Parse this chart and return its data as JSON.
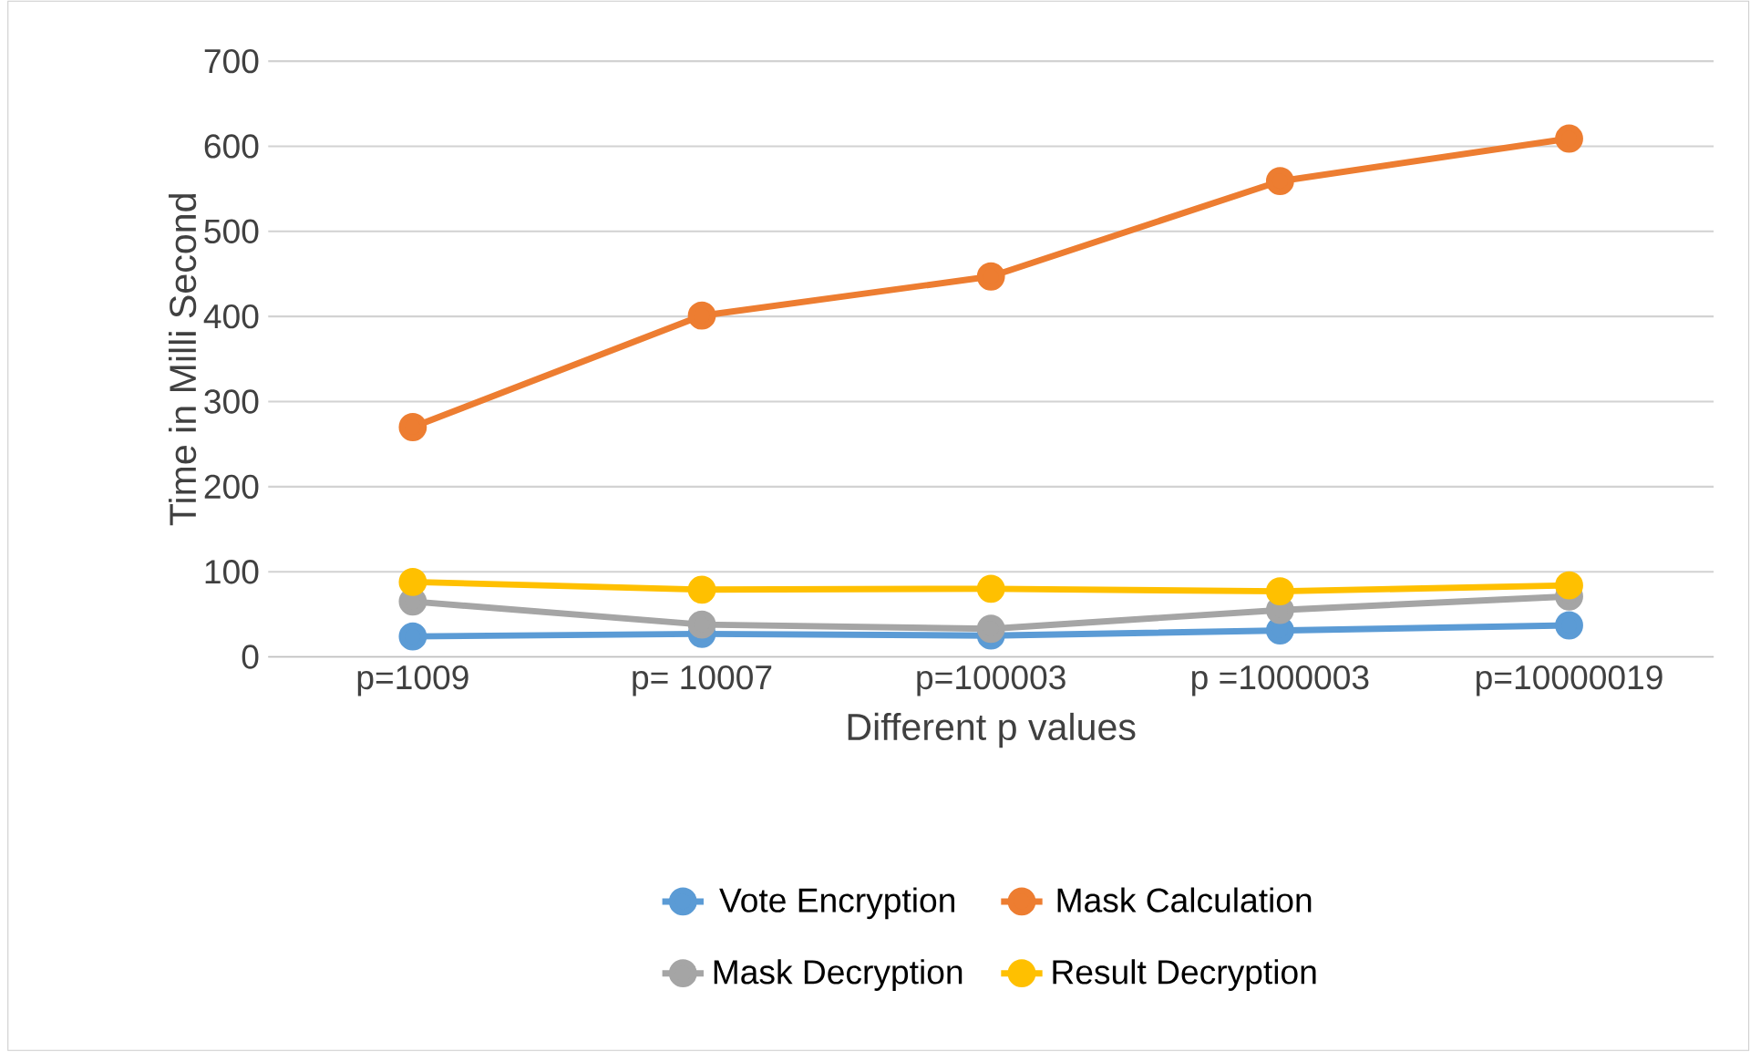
{
  "chart_data": {
    "type": "line",
    "xlabel": "Different p values",
    "ylabel": "Time in Milli Second",
    "categories": [
      "p=1009",
      "p= 10007",
      "p=100003",
      "p =1000003",
      "p=10000019"
    ],
    "series": [
      {
        "name": "Vote Encryption",
        "color": "#5b9bd5",
        "values": [
          24,
          27,
          25,
          31,
          37
        ]
      },
      {
        "name": "Mask Calculation",
        "color": "#ed7d31",
        "values": [
          270,
          401,
          447,
          559,
          609
        ]
      },
      {
        "name": "Mask Decryption",
        "color": "#a5a5a5",
        "values": [
          65,
          38,
          33,
          55,
          71
        ]
      },
      {
        "name": "Result Decryption",
        "color": "#ffc000",
        "values": [
          88,
          79,
          80,
          77,
          84
        ]
      }
    ],
    "ylim": [
      0,
      700
    ],
    "yticks": [
      0,
      100,
      200,
      300,
      400,
      500,
      600,
      700
    ],
    "grid": "y",
    "legend": "bottom",
    "marker": "circle",
    "line_style": "solid"
  }
}
